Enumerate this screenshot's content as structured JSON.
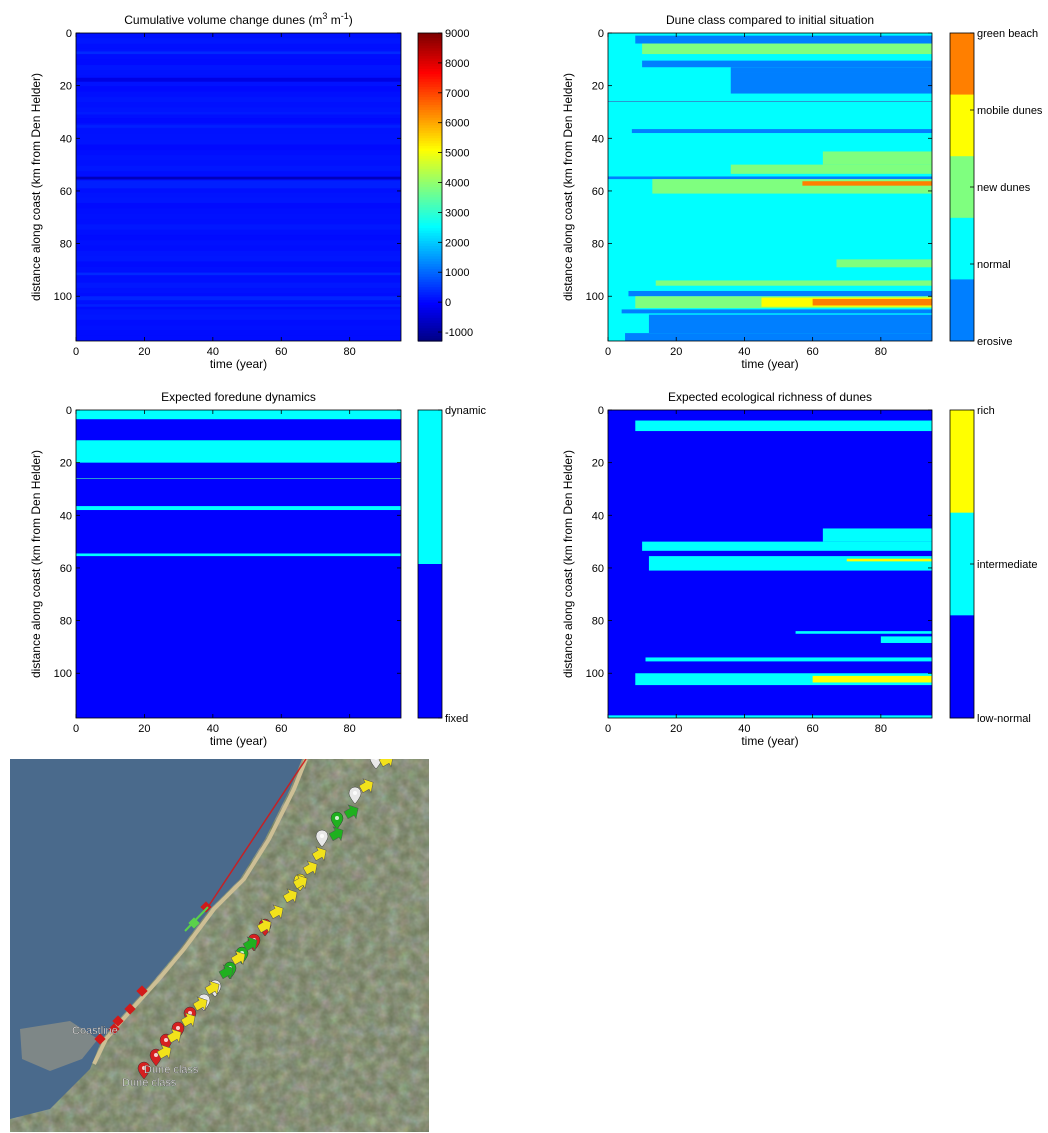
{
  "chart_data": [
    {
      "type": "heatmap",
      "title": "Cumulative volume change dunes (m",
      "title_sup1": "3",
      "title_mid": " m",
      "title_sup2": "-1",
      "title_end": ")",
      "xlabel": "time (year)",
      "ylabel": "distance along coast (km from Den Helder)",
      "xlim": [
        0,
        95
      ],
      "ylim": [
        0,
        117
      ],
      "xticks": [
        0,
        20,
        40,
        60,
        80
      ],
      "yticks": [
        0,
        20,
        40,
        60,
        80,
        100
      ],
      "colorbar": {
        "type": "continuous",
        "range": [
          -1300,
          9000
        ],
        "ticks": [
          -1000,
          0,
          1000,
          2000,
          3000,
          4000,
          5000,
          6000,
          7000,
          8000,
          9000
        ],
        "tick_labels": [
          "-1000",
          "0",
          "1000",
          "2000",
          "3000",
          "4000",
          "5000",
          "6000",
          "7000",
          "8000",
          "9000"
        ]
      },
      "stripes": [
        {
          "y0": 7,
          "y1": 8,
          "value": 400
        },
        {
          "y0": 17,
          "y1": 18.5,
          "value": -300
        },
        {
          "y0": 30,
          "y1": 31,
          "value": 250
        },
        {
          "y0": 35,
          "y1": 36,
          "value": 300
        },
        {
          "y0": 54.6,
          "y1": 55.6,
          "value": -700
        },
        {
          "y0": 56,
          "y1": 59,
          "value": 300
        },
        {
          "y0": 91,
          "y1": 92,
          "value": 400
        },
        {
          "y0": 100,
          "y1": 101.5,
          "value": 350
        },
        {
          "y0": 103,
          "y1": 104,
          "value": 300
        }
      ]
    },
    {
      "type": "heatmap",
      "title": "Dune class compared to initial situation",
      "xlabel": "time (year)",
      "ylabel": "distance along coast (km from Den Helder)",
      "xlim": [
        0,
        95
      ],
      "ylim": [
        0,
        117
      ],
      "xticks": [
        0,
        20,
        40,
        60,
        80
      ],
      "yticks": [
        0,
        20,
        40,
        60,
        80,
        100
      ],
      "colorbar": {
        "type": "categorical",
        "classes": [
          {
            "label": "green beach",
            "color": "#ff7f00"
          },
          {
            "label": "mobile dunes",
            "color": "#ffff00"
          },
          {
            "label": "new dunes",
            "color": "#7fff7f"
          },
          {
            "label": "normal",
            "color": "#00ffff"
          },
          {
            "label": "erosive",
            "color": "#007fff"
          }
        ]
      },
      "background_class": "normal",
      "regions": [
        {
          "class": "erosive",
          "y0": 1,
          "y1": 4,
          "x0": 8
        },
        {
          "class": "new dunes",
          "y0": 4,
          "y1": 8,
          "x0": 10
        },
        {
          "class": "erosive",
          "y0": 10.5,
          "y1": 13,
          "x0": 10
        },
        {
          "class": "erosive",
          "y0": 13,
          "y1": 15,
          "x0": 36
        },
        {
          "class": "erosive",
          "y0": 15,
          "y1": 23,
          "x0": 36
        },
        {
          "class": "erosive",
          "y0": 36.5,
          "y1": 38,
          "x0": 7
        },
        {
          "class": "new dunes",
          "y0": 45,
          "y1": 50,
          "x0": 63
        },
        {
          "class": "new dunes",
          "y0": 50,
          "y1": 53.5,
          "x0": 36
        },
        {
          "class": "erosive",
          "y0": 54.5,
          "y1": 55.5,
          "x0": 0
        },
        {
          "class": "new dunes",
          "y0": 55.5,
          "y1": 61,
          "x0": 13
        },
        {
          "class": "green beach",
          "y0": 56.3,
          "y1": 58,
          "x0": 57
        },
        {
          "class": "new dunes",
          "y0": 86,
          "y1": 89,
          "x0": 67
        },
        {
          "class": "new dunes",
          "y0": 94,
          "y1": 96,
          "x0": 14
        },
        {
          "class": "erosive",
          "y0": 98,
          "y1": 100,
          "x0": 6
        },
        {
          "class": "new dunes",
          "y0": 100,
          "y1": 104.5,
          "x0": 8
        },
        {
          "class": "mobile dunes",
          "y0": 100.5,
          "y1": 104,
          "x0": 45
        },
        {
          "class": "green beach",
          "y0": 101,
          "y1": 103.5,
          "x0": 60
        },
        {
          "class": "erosive",
          "y0": 105,
          "y1": 106.5,
          "x0": 4
        },
        {
          "class": "erosive",
          "y0": 107,
          "y1": 114,
          "x0": 12
        },
        {
          "class": "erosive",
          "y0": 114,
          "y1": 117,
          "x0": 5
        }
      ],
      "lines": [
        26
      ]
    },
    {
      "type": "heatmap",
      "title": "Expected foredune dynamics",
      "xlabel": "time (year)",
      "ylabel": "distance along coast (km from Den Helder)",
      "xlim": [
        0,
        95
      ],
      "ylim": [
        0,
        117
      ],
      "xticks": [
        0,
        20,
        40,
        60,
        80
      ],
      "yticks": [
        0,
        20,
        40,
        60,
        80,
        100
      ],
      "colorbar": {
        "type": "categorical",
        "classes": [
          {
            "label": "dynamic",
            "color": "#00ffff"
          },
          {
            "label": "fixed",
            "color": "#0000ff"
          }
        ]
      },
      "background_class": "fixed",
      "regions": [
        {
          "class": "dynamic",
          "y0": 0,
          "y1": 3.5,
          "x0": 0
        },
        {
          "class": "dynamic",
          "y0": 11.5,
          "y1": 20,
          "x0": 0
        },
        {
          "class": "dynamic",
          "y0": 36.5,
          "y1": 38,
          "x0": 0
        },
        {
          "class": "dynamic",
          "y0": 54.5,
          "y1": 55.5,
          "x0": 0
        }
      ],
      "lines": [
        26
      ]
    },
    {
      "type": "heatmap",
      "title": "Expected ecological richness of dunes",
      "xlabel": "time (year)",
      "ylabel": "distance along coast (km from Den Helder)",
      "xlim": [
        0,
        95
      ],
      "ylim": [
        0,
        117
      ],
      "xticks": [
        0,
        20,
        40,
        60,
        80
      ],
      "yticks": [
        0,
        20,
        40,
        60,
        80,
        100
      ],
      "colorbar": {
        "type": "categorical",
        "classes": [
          {
            "label": "rich",
            "color": "#ffff00"
          },
          {
            "label": "intermediate",
            "color": "#00ffff"
          },
          {
            "label": "low-normal",
            "color": "#0000ff"
          }
        ]
      },
      "background_class": "low-normal",
      "regions": [
        {
          "class": "intermediate",
          "y0": 4,
          "y1": 8,
          "x0": 8
        },
        {
          "class": "intermediate",
          "y0": 45,
          "y1": 50,
          "x0": 63
        },
        {
          "class": "intermediate",
          "y0": 50,
          "y1": 53.5,
          "x0": 10
        },
        {
          "class": "intermediate",
          "y0": 55.5,
          "y1": 61,
          "x0": 12
        },
        {
          "class": "rich",
          "y0": 56.5,
          "y1": 57.5,
          "x0": 70
        },
        {
          "class": "intermediate",
          "y0": 84,
          "y1": 85,
          "x0": 55
        },
        {
          "class": "intermediate",
          "y0": 86,
          "y1": 88.5,
          "x0": 80
        },
        {
          "class": "intermediate",
          "y0": 94,
          "y1": 95.5,
          "x0": 11
        },
        {
          "class": "intermediate",
          "y0": 100,
          "y1": 104.5,
          "x0": 8
        },
        {
          "class": "rich",
          "y0": 101,
          "y1": 103.5,
          "x0": 60
        },
        {
          "class": "intermediate",
          "y0": 116,
          "y1": 117,
          "x0": 0
        }
      ],
      "lines": []
    }
  ],
  "map": {
    "labels": {
      "coastline": "Coastline",
      "dune_class_1": "Dune class",
      "dune_class_2": "Dune class"
    },
    "colors": {
      "sea": "#4a6a8c",
      "land": "#6b7558",
      "beach": "#cdbf95",
      "coast_line_red": "#d11a1a",
      "coast_line_green": "#5bd14a",
      "marker_yellow": "#f2e21a",
      "marker_red": "#d62020",
      "marker_green": "#1fb01f",
      "marker_white": "#e8e8e8"
    }
  }
}
